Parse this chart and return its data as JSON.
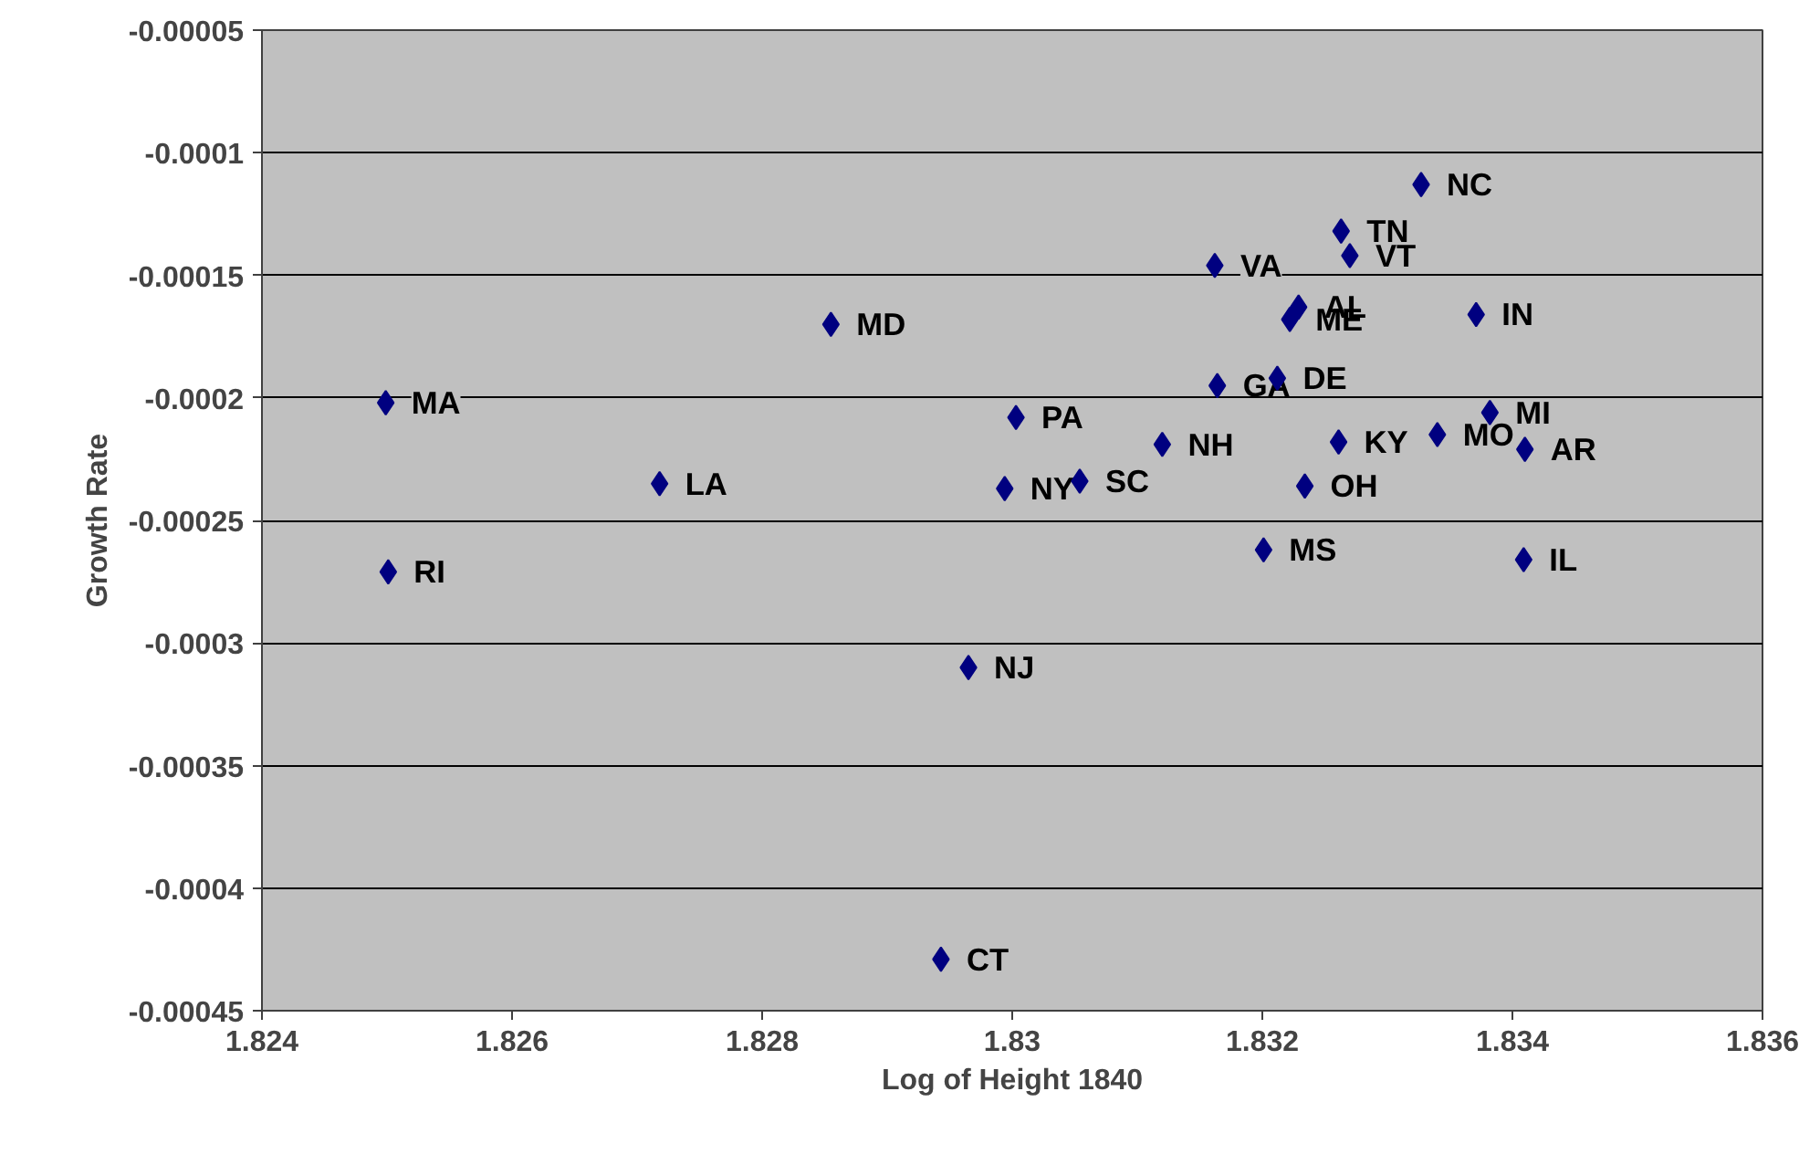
{
  "chart_data": {
    "type": "scatter",
    "xlabel": "Log of Height 1840",
    "ylabel": "Growth Rate",
    "x": [
      1.83327,
      1.83263,
      1.8327,
      1.83162,
      1.83229,
      1.83222,
      1.83371,
      1.83164,
      1.83212,
      1.83382,
      1.8334,
      1.8341,
      1.83261,
      1.8312,
      1.83234,
      1.83201,
      1.83409,
      1.83054,
      1.82855,
      1.82499,
      1.83003,
      1.82718,
      1.82994,
      1.82501,
      1.82965,
      1.82943
    ],
    "values": [
      -0.000113,
      -0.000132,
      -0.000142,
      -0.000146,
      -0.000163,
      -0.000168,
      -0.000166,
      -0.000195,
      -0.000192,
      -0.000206,
      -0.000215,
      -0.000221,
      -0.000218,
      -0.000219,
      -0.000236,
      -0.000262,
      -0.000266,
      -0.000234,
      -0.00017,
      -0.000202,
      -0.000208,
      -0.000235,
      -0.000237,
      -0.000271,
      -0.00031,
      -0.000429
    ],
    "color": "#000080",
    "marker": "diamond",
    "annotations": [
      {
        "text": "NC",
        "x": 1.83327,
        "y": -0.000113
      },
      {
        "text": "TN",
        "x": 1.83263,
        "y": -0.000132
      },
      {
        "text": "VT",
        "x": 1.8327,
        "y": -0.000142
      },
      {
        "text": "VA",
        "x": 1.83162,
        "y": -0.000146
      },
      {
        "text": "AL",
        "x": 1.83229,
        "y": -0.000163
      },
      {
        "text": "ME",
        "x": 1.83222,
        "y": -0.000168
      },
      {
        "text": "IN",
        "x": 1.83371,
        "y": -0.000166
      },
      {
        "text": "GA",
        "x": 1.83164,
        "y": -0.000195
      },
      {
        "text": "DE",
        "x": 1.83212,
        "y": -0.000192
      },
      {
        "text": "MI",
        "x": 1.83382,
        "y": -0.000206
      },
      {
        "text": "MO",
        "x": 1.8334,
        "y": -0.000215
      },
      {
        "text": "AR",
        "x": 1.8341,
        "y": -0.000221
      },
      {
        "text": "KY",
        "x": 1.83261,
        "y": -0.000218
      },
      {
        "text": "NH",
        "x": 1.8312,
        "y": -0.000219
      },
      {
        "text": "OH",
        "x": 1.83234,
        "y": -0.000236
      },
      {
        "text": "MS",
        "x": 1.83201,
        "y": -0.000262
      },
      {
        "text": "IL",
        "x": 1.83409,
        "y": -0.000266
      },
      {
        "text": "SC",
        "x": 1.83054,
        "y": -0.000234
      },
      {
        "text": "MD",
        "x": 1.82855,
        "y": -0.00017
      },
      {
        "text": "MA",
        "x": 1.82499,
        "y": -0.000202
      },
      {
        "text": "PA",
        "x": 1.83003,
        "y": -0.000208
      },
      {
        "text": "LA",
        "x": 1.82718,
        "y": -0.000235
      },
      {
        "text": "NY",
        "x": 1.82994,
        "y": -0.000237
      },
      {
        "text": "RI",
        "x": 1.82501,
        "y": -0.000271
      },
      {
        "text": "NJ",
        "x": 1.82965,
        "y": -0.00031
      },
      {
        "text": "CT",
        "x": 1.82943,
        "y": -0.000429
      }
    ],
    "xlim": [
      1.824,
      1.836
    ],
    "xticks": [
      1.824,
      1.826,
      1.828,
      1.83,
      1.832,
      1.834,
      1.836
    ],
    "ylim": [
      -0.00045,
      -5e-05
    ],
    "yticks": [
      {
        "value": -0.00045,
        "label": "-0.00045"
      },
      {
        "value": -0.0004,
        "label": "-0.0004"
      },
      {
        "value": -0.00035,
        "label": "-0.00035"
      },
      {
        "value": -0.0003,
        "label": "-0.0003"
      },
      {
        "value": -0.00025,
        "label": "-0.00025"
      },
      {
        "value": -0.0002,
        "label": "-0.0002"
      },
      {
        "value": -0.00015,
        "label": "-0.00015"
      },
      {
        "value": -0.0001,
        "label": "-0.0001"
      },
      {
        "value": -5e-05,
        "label": "-0.00005"
      }
    ],
    "grid": "y"
  }
}
